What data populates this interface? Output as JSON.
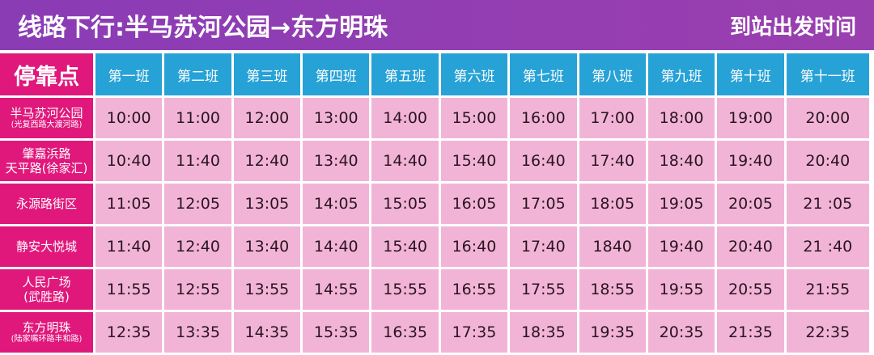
{
  "title": {
    "route": "线路下行:半马苏河公园→东方明珠",
    "right": "到站出发时间"
  },
  "header": {
    "stop": "停靠点",
    "runs": [
      "第一班",
      "第二班",
      "第三班",
      "第四班",
      "第五班",
      "第六班",
      "第七班",
      "第八班",
      "第九班",
      "第十班",
      "第十一班"
    ]
  },
  "rows": [
    {
      "name": "半马苏河公园",
      "sub": "(光复西路大渡河路)",
      "times": [
        "10:00",
        "11:00",
        "12:00",
        "13:00",
        "14:00",
        "15:00",
        "16:00",
        "17:00",
        "18:00",
        "19:00",
        "20:00"
      ]
    },
    {
      "name": "肇嘉浜路",
      "sub2": "天平路(徐家汇)",
      "times": [
        "10:40",
        "11:40",
        "12:40",
        "13:40",
        "14:40",
        "15:40",
        "16:40",
        "17:40",
        "18:40",
        "19:40",
        "20:40"
      ]
    },
    {
      "name": "永源路街区",
      "times": [
        "11:05",
        "12:05",
        "13:05",
        "14:05",
        "15:05",
        "16:05",
        "17:05",
        "18:05",
        "19:05",
        "20:05",
        "21 :05"
      ]
    },
    {
      "name": "静安大悦城",
      "times": [
        "11:40",
        "12:40",
        "13:40",
        "14:40",
        "15:40",
        "16:40",
        "17:40",
        "1840",
        "19:40",
        "20:40",
        "21 :40"
      ]
    },
    {
      "name": "人民广场",
      "sub2": "(武胜路)",
      "times": [
        "11:55",
        "12:55",
        "13:55",
        "14:55",
        "15:55",
        "16:55",
        "17:55",
        "18:55",
        "19:55",
        "20:55",
        "21:55"
      ]
    },
    {
      "name": "东方明珠",
      "sub": "(陆家嘴环路丰和路)",
      "times": [
        "12:35",
        "13:35",
        "14:35",
        "15:35",
        "16:35",
        "17:35",
        "18:35",
        "19:35",
        "20:35",
        "21:35",
        "22:35"
      ]
    }
  ],
  "colors": {
    "title_bg": "#8e3cb4",
    "stop_bg": "#e0187c",
    "header_bg": "#27a2d6",
    "cell_bg": "#f2b4d6"
  }
}
